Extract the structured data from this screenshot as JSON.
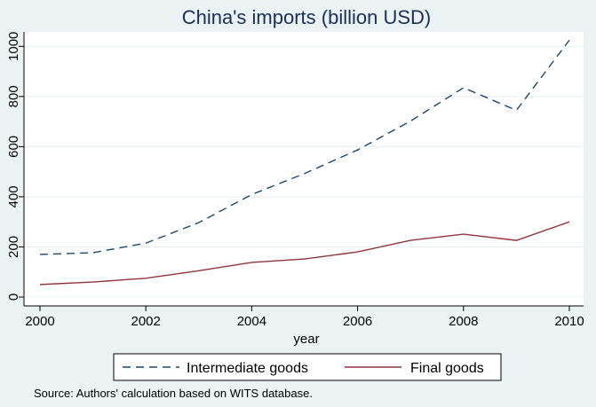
{
  "chart_data": {
    "type": "line",
    "title": "China's imports (billion USD)",
    "xlabel": "year",
    "ylabel": "",
    "x": [
      2000,
      2001,
      2002,
      2003,
      2004,
      2005,
      2006,
      2007,
      2008,
      2009,
      2010
    ],
    "xlim": [
      2000,
      2010
    ],
    "ylim": [
      0,
      1050
    ],
    "xticks": [
      2000,
      2002,
      2004,
      2006,
      2008,
      2010
    ],
    "yticks": [
      0,
      200,
      400,
      600,
      800,
      1000
    ],
    "grid": true,
    "legend_position": "bottom",
    "series": [
      {
        "name": "Intermediate goods",
        "style": "dashed",
        "color": "#1a476f",
        "values": [
          170,
          177,
          215,
          297,
          409,
          493,
          587,
          702,
          835,
          745,
          1025
        ]
      },
      {
        "name": "Final goods",
        "style": "solid",
        "color": "#90353b",
        "values": [
          50,
          60,
          75,
          105,
          138,
          152,
          180,
          226,
          251,
          226,
          300
        ]
      }
    ],
    "source_note": "Source: Authors' calculation based on WITS database."
  },
  "colors": {
    "background": "#eaf2f3",
    "plot_area": "#ffffff",
    "grid": "#eaf2f3",
    "title": "#1a2e5a"
  }
}
